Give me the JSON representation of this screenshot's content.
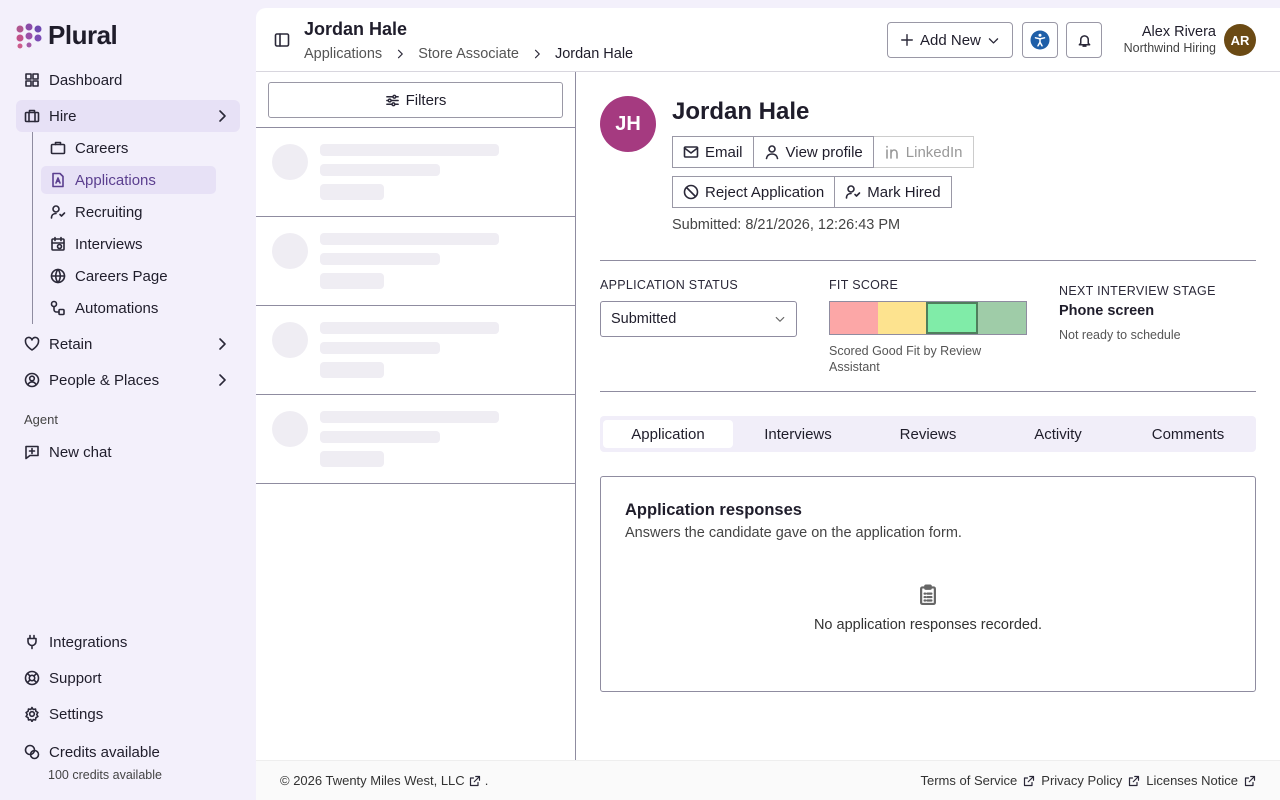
{
  "sidebar": {
    "brand": "Plural",
    "nav": [
      "Dashboard",
      "Hire"
    ],
    "hire_children": [
      "Careers",
      "Applications",
      "Recruiting",
      "Interviews",
      "Careers Page",
      "Automations"
    ],
    "more_nav": [
      "Retain",
      "People & Places"
    ],
    "section": "Agent",
    "agent_nav": [
      "New chat"
    ],
    "bottom_nav": [
      "Integrations",
      "Support",
      "Settings"
    ],
    "credits": {
      "title": "Credits available",
      "subtitle": "100 credits available"
    }
  },
  "header": {
    "title": "Jordan Hale",
    "breadcrumbs": [
      "Applications",
      "Store Associate",
      "Jordan Hale"
    ],
    "add_new": "Add New",
    "user": {
      "name": "Alex Rivera",
      "org": "Northwind Hiring",
      "initials": "AR"
    }
  },
  "list": {
    "filters": "Filters"
  },
  "candidate": {
    "initials": "JH",
    "name": "Jordan Hale",
    "actions": [
      "Email",
      "View profile",
      "LinkedIn"
    ],
    "decisions": [
      "Reject Application",
      "Mark Hired"
    ],
    "submitted": "Submitted: 8/21/2026, 12:26:43 PM"
  },
  "status": {
    "application_status": {
      "label": "APPLICATION STATUS",
      "value": "Submitted"
    },
    "fit_score": {
      "label": "FIT SCORE",
      "note": "Scored Good Fit by Review Assistant"
    },
    "next_stage": {
      "label": "NEXT INTERVIEW STAGE",
      "value": "Phone screen",
      "note": "Not ready to schedule"
    }
  },
  "tabs": [
    "Application",
    "Interviews",
    "Reviews",
    "Activity",
    "Comments"
  ],
  "panel": {
    "title": "Application responses",
    "description": "Answers the candidate gave on the application form.",
    "empty": "No application responses recorded."
  },
  "footer": {
    "copyright": "© 2026 Twenty Miles West, LLC",
    "links": [
      "Terms of Service",
      "Privacy Policy",
      "Licenses Notice"
    ]
  }
}
